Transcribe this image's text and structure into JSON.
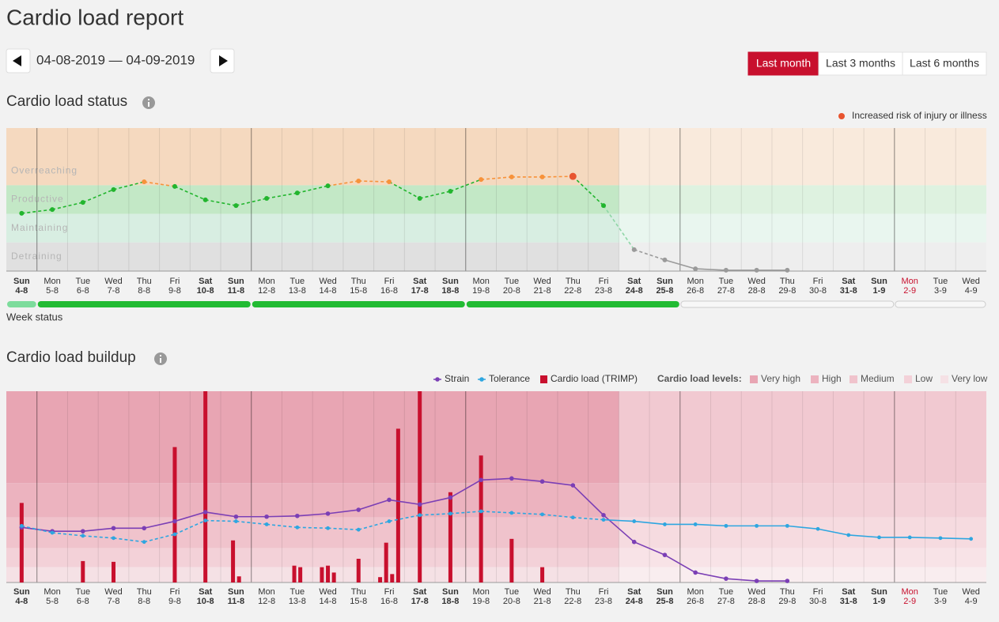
{
  "header": {
    "title": "Cardio load report",
    "date_range": "04-08-2019 — 04-09-2019",
    "periods": [
      "Last month",
      "Last 3 months",
      "Last 6 months"
    ],
    "active_period": 0
  },
  "days": [
    {
      "weekday": "Sun",
      "date": "4-8",
      "style": "bold"
    },
    {
      "weekday": "Mon",
      "date": "5-8",
      "style": "normal"
    },
    {
      "weekday": "Tue",
      "date": "6-8",
      "style": "normal"
    },
    {
      "weekday": "Wed",
      "date": "7-8",
      "style": "normal"
    },
    {
      "weekday": "Thu",
      "date": "8-8",
      "style": "normal"
    },
    {
      "weekday": "Fri",
      "date": "9-8",
      "style": "normal"
    },
    {
      "weekday": "Sat",
      "date": "10-8",
      "style": "bold"
    },
    {
      "weekday": "Sun",
      "date": "11-8",
      "style": "bold"
    },
    {
      "weekday": "Mon",
      "date": "12-8",
      "style": "normal"
    },
    {
      "weekday": "Tue",
      "date": "13-8",
      "style": "normal"
    },
    {
      "weekday": "Wed",
      "date": "14-8",
      "style": "normal"
    },
    {
      "weekday": "Thu",
      "date": "15-8",
      "style": "normal"
    },
    {
      "weekday": "Fri",
      "date": "16-8",
      "style": "normal"
    },
    {
      "weekday": "Sat",
      "date": "17-8",
      "style": "bold"
    },
    {
      "weekday": "Sun",
      "date": "18-8",
      "style": "bold"
    },
    {
      "weekday": "Mon",
      "date": "19-8",
      "style": "normal"
    },
    {
      "weekday": "Tue",
      "date": "20-8",
      "style": "normal"
    },
    {
      "weekday": "Wed",
      "date": "21-8",
      "style": "normal"
    },
    {
      "weekday": "Thu",
      "date": "22-8",
      "style": "normal"
    },
    {
      "weekday": "Fri",
      "date": "23-8",
      "style": "normal"
    },
    {
      "weekday": "Sat",
      "date": "24-8",
      "style": "bold"
    },
    {
      "weekday": "Sun",
      "date": "25-8",
      "style": "bold"
    },
    {
      "weekday": "Mon",
      "date": "26-8",
      "style": "normal"
    },
    {
      "weekday": "Tue",
      "date": "27-8",
      "style": "normal"
    },
    {
      "weekday": "Wed",
      "date": "28-8",
      "style": "normal"
    },
    {
      "weekday": "Thu",
      "date": "29-8",
      "style": "normal"
    },
    {
      "weekday": "Fri",
      "date": "30-8",
      "style": "normal"
    },
    {
      "weekday": "Sat",
      "date": "31-8",
      "style": "bold"
    },
    {
      "weekday": "Sun",
      "date": "1-9",
      "style": "bold"
    },
    {
      "weekday": "Mon",
      "date": "2-9",
      "style": "red"
    },
    {
      "weekday": "Tue",
      "date": "3-9",
      "style": "normal"
    },
    {
      "weekday": "Wed",
      "date": "4-9",
      "style": "normal"
    }
  ],
  "status": {
    "title": "Cardio load status",
    "legend": "Increased risk of injury or illness",
    "risk_color": "#e8542f",
    "ylim": [
      0,
      5
    ],
    "zones": [
      {
        "name": "Overreaching",
        "from": 3,
        "to": 5,
        "color": "#f5d9bf",
        "point_color": "#f7923a"
      },
      {
        "name": "Productive",
        "from": 2,
        "to": 3,
        "color": "#c3e8c6",
        "point_color": "#22b52e"
      },
      {
        "name": "Maintaining",
        "from": 1,
        "to": 2,
        "color": "#d8eee2",
        "point_color": "#8fd6a6"
      },
      {
        "name": "Detraining",
        "from": 0,
        "to": 1,
        "color": "#e0e0e0",
        "point_color": "#9a9a9a"
      }
    ],
    "values": [
      2.02,
      2.15,
      2.4,
      2.85,
      3.12,
      2.96,
      2.49,
      2.29,
      2.54,
      2.73,
      2.98,
      3.15,
      3.12,
      2.54,
      2.79,
      3.2,
      3.29,
      3.29,
      3.31,
      2.29,
      0.75,
      0.39,
      0.08,
      0.03,
      0.03,
      0.03,
      null,
      null,
      null,
      null,
      null,
      null
    ],
    "risk": [
      18
    ],
    "week_label": "Week status",
    "weeks": [
      {
        "from": 0,
        "to": 0,
        "color": "#7ddc9c"
      },
      {
        "from": 1,
        "to": 7,
        "color": "#22bb33"
      },
      {
        "from": 8,
        "to": 14,
        "color": "#22bb33"
      },
      {
        "from": 15,
        "to": 21,
        "color": "#22bb33"
      },
      {
        "from": 22,
        "to": 28,
        "color": null
      },
      {
        "from": 29,
        "to": 31,
        "color": null
      }
    ]
  },
  "buildup": {
    "title": "Cardio load buildup",
    "ylim": [
      0,
      250
    ],
    "series": [
      {
        "name": "Strain",
        "color": "#7b3fb5",
        "values": [
          72,
          67,
          67,
          71,
          71,
          80,
          92,
          86,
          86,
          87,
          90,
          95,
          108,
          102,
          111,
          134,
          136,
          132,
          127,
          88,
          53,
          36,
          13,
          5,
          2,
          2,
          null,
          null,
          null,
          null,
          null,
          null
        ]
      },
      {
        "name": "Tolerance",
        "color": "#2ea6e0",
        "values": [
          74,
          65,
          61,
          58,
          53,
          63,
          81,
          80,
          76,
          72,
          71,
          69,
          80,
          88,
          90,
          93,
          91,
          89,
          85,
          82,
          80,
          76,
          76,
          74,
          74,
          74,
          70,
          62,
          59,
          59,
          58,
          57
        ]
      }
    ],
    "load": {
      "name": "Cardio load (TRIMP)",
      "color": "#c8102e",
      "values": [
        [
          104
        ],
        [],
        [
          28
        ],
        [
          27
        ],
        [],
        [
          177
        ],
        [
          270
        ],
        [
          55,
          8
        ],
        [],
        [
          22,
          20
        ],
        [
          20,
          22,
          13
        ],
        [
          31
        ],
        [
          7,
          52,
          11,
          201
        ],
        [
          280
        ],
        [
          118
        ],
        [
          166
        ],
        [
          57
        ],
        [
          20
        ],
        [],
        [],
        [],
        [],
        [],
        [],
        [],
        [],
        [],
        [],
        [],
        [],
        [],
        []
      ]
    },
    "levels_label": "Cardio load levels:",
    "levels": [
      {
        "name": "Very high",
        "from": 130,
        "color": "#e8a5b3"
      },
      {
        "name": "High",
        "from": 85,
        "color": "#ecb3bf"
      },
      {
        "name": "Medium",
        "from": 45,
        "color": "#f0c3cc"
      },
      {
        "name": "Low",
        "from": 20,
        "color": "#f3d1d8"
      },
      {
        "name": "Very low",
        "from": 0,
        "color": "#f5e1e5"
      }
    ]
  }
}
